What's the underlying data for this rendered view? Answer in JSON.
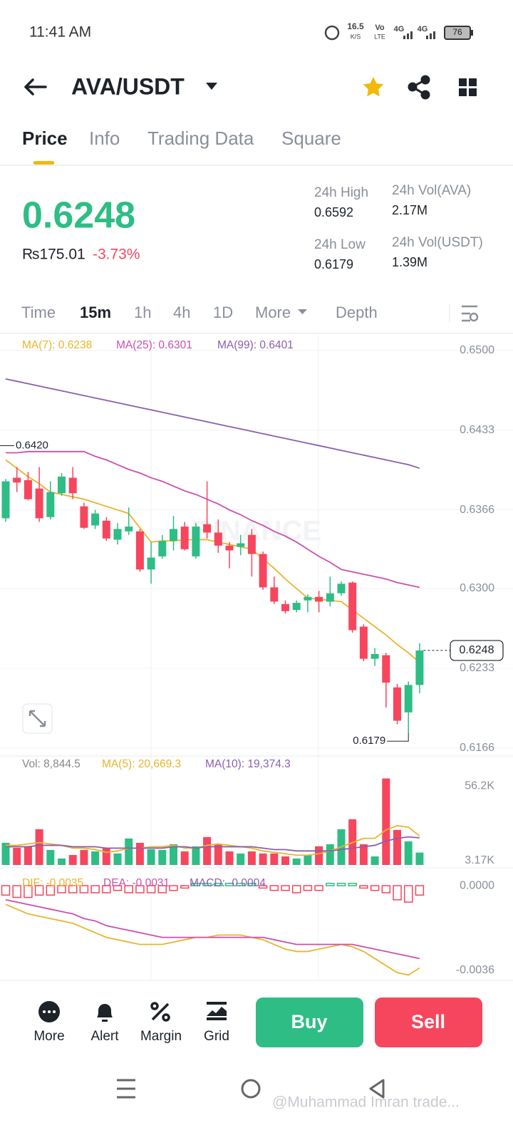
{
  "status_bar": {
    "time": "11:41 AM",
    "net_speed": "16.5",
    "net_unit": "K/S",
    "volte_top": "Vo",
    "volte_bottom": "LTE",
    "sim1": "4G",
    "sim2": "4G",
    "battery": "76"
  },
  "header": {
    "pair": "AVA/USDT"
  },
  "tabs": [
    "Price",
    "Info",
    "Trading Data",
    "Square"
  ],
  "ticker": {
    "price": "0.6248",
    "fiat": "₨175.01",
    "change": "-3.73%"
  },
  "stats": [
    {
      "label": "24h High",
      "value": "0.6592"
    },
    {
      "label": "24h Vol(AVA)",
      "value": "2.17M"
    },
    {
      "label": "24h Low",
      "value": "0.6179"
    },
    {
      "label": "24h Vol(USDT)",
      "value": "1.39M"
    }
  ],
  "intervals": [
    "Time",
    "15m",
    "1h",
    "4h",
    "1D",
    "More",
    "Depth"
  ],
  "watermark": "BINANCE",
  "chart_data": [
    {
      "type": "candlestick",
      "up_color": "#2ebd85",
      "down_color": "#f6465d",
      "open": [
        0.6359,
        0.6393,
        0.6391,
        0.6384,
        0.636,
        0.638,
        0.6393,
        0.6369,
        0.6353,
        0.6357,
        0.6341,
        0.6348,
        0.6348,
        0.6316,
        0.6327,
        0.634,
        0.6352,
        0.6327,
        0.6354,
        0.6347,
        0.6336,
        0.6335,
        0.6345,
        0.6329,
        0.6301,
        0.6287,
        0.6282,
        0.629,
        0.6293,
        0.6289,
        0.6296,
        0.6305,
        0.6268,
        0.6241,
        0.6244,
        0.6217,
        0.6196,
        0.6219
      ],
      "high": [
        0.6392,
        0.6402,
        0.6398,
        0.6402,
        0.639,
        0.6397,
        0.6402,
        0.6372,
        0.6366,
        0.636,
        0.6355,
        0.6368,
        0.635,
        0.6339,
        0.6345,
        0.6361,
        0.6356,
        0.6355,
        0.639,
        0.6358,
        0.6339,
        0.6345,
        0.635,
        0.6331,
        0.631,
        0.629,
        0.629,
        0.6295,
        0.6298,
        0.631,
        0.6306,
        0.6306,
        0.627,
        0.625,
        0.6246,
        0.622,
        0.6222,
        0.6254
      ],
      "low": [
        0.6356,
        0.6381,
        0.6374,
        0.6356,
        0.6358,
        0.6378,
        0.6375,
        0.635,
        0.635,
        0.634,
        0.6337,
        0.6345,
        0.6314,
        0.6304,
        0.6325,
        0.6332,
        0.6332,
        0.6325,
        0.6342,
        0.633,
        0.6317,
        0.6328,
        0.631,
        0.6299,
        0.6287,
        0.6279,
        0.628,
        0.628,
        0.628,
        0.6285,
        0.6294,
        0.6263,
        0.6239,
        0.6235,
        0.62,
        0.6186,
        0.6179,
        0.6212
      ],
      "close": [
        0.639,
        0.6389,
        0.6375,
        0.6359,
        0.6381,
        0.6394,
        0.638,
        0.6351,
        0.6363,
        0.6342,
        0.635,
        0.6352,
        0.6316,
        0.6326,
        0.634,
        0.635,
        0.6333,
        0.6352,
        0.6347,
        0.6336,
        0.6332,
        0.6338,
        0.6329,
        0.6301,
        0.6289,
        0.6281,
        0.6288,
        0.6293,
        0.6289,
        0.6296,
        0.6304,
        0.6265,
        0.6241,
        0.6245,
        0.6221,
        0.6189,
        0.6219,
        0.6248
      ],
      "series": [
        {
          "name": "MA(7): 0.6238",
          "color": "#e8b52a",
          "values": [
            0.6408,
            0.6401,
            0.6394,
            0.6388,
            0.6381,
            0.6379,
            0.6377,
            0.6375,
            0.6372,
            0.6369,
            0.6366,
            0.6363,
            0.6351,
            0.6339,
            0.634,
            0.634,
            0.6341,
            0.6341,
            0.6341,
            0.6339,
            0.6337,
            0.6335,
            0.6333,
            0.6325,
            0.6317,
            0.6308,
            0.63,
            0.6292,
            0.6291,
            0.629,
            0.6289,
            0.6282,
            0.6275,
            0.6268,
            0.6261,
            0.6253,
            0.6246,
            0.6238
          ]
        },
        {
          "name": "MA(25): 0.6301",
          "color": "#cc4fae",
          "values": [
            0.6414,
            0.6414,
            0.6415,
            0.6415,
            0.6415,
            0.6415,
            0.6415,
            0.6415,
            0.6411,
            0.6408,
            0.6404,
            0.64,
            0.6397,
            0.6393,
            0.639,
            0.6386,
            0.6382,
            0.6379,
            0.6375,
            0.6371,
            0.6366,
            0.6362,
            0.6357,
            0.6353,
            0.6348,
            0.6344,
            0.6339,
            0.6333,
            0.6327,
            0.6322,
            0.6316,
            0.6314,
            0.6312,
            0.631,
            0.6308,
            0.6305,
            0.6303,
            0.6301
          ]
        },
        {
          "name": "MA(99): 0.6401",
          "color": "#8a5fb0",
          "values": [
            0.6476,
            0.6474,
            0.6472,
            0.647,
            0.6468,
            0.6466,
            0.6464,
            0.6462,
            0.646,
            0.6458,
            0.6456,
            0.6454,
            0.6452,
            0.645,
            0.6448,
            0.6446,
            0.6444,
            0.6442,
            0.644,
            0.6438,
            0.6436,
            0.6434,
            0.6432,
            0.643,
            0.6428,
            0.6426,
            0.6424,
            0.6422,
            0.642,
            0.6418,
            0.6416,
            0.6414,
            0.6412,
            0.641,
            0.6408,
            0.6406,
            0.6404,
            0.6401
          ]
        }
      ],
      "ylim": [
        0.616,
        0.6513
      ],
      "yticks": [
        {
          "value": 0.65,
          "label": "0.6500"
        },
        {
          "value": 0.6433,
          "label": "0.6433"
        },
        {
          "value": 0.6366,
          "label": "0.6366"
        },
        {
          "value": 0.63,
          "label": "0.6300"
        },
        {
          "value": 0.6233,
          "label": "0.6233"
        },
        {
          "value": 0.6166,
          "label": "0.6166"
        }
      ],
      "grid": true,
      "annotations": [
        {
          "text": "0.6420",
          "value": 0.642
        },
        {
          "text": "0.6179",
          "value": 0.6179
        }
      ],
      "last_price": {
        "value": 0.6248,
        "label": "0.6248"
      }
    },
    {
      "type": "bar",
      "series": [
        {
          "name": "Vol: 8,844.5",
          "color": "#888888",
          "values": [
            15.8,
            12.2,
            13.3,
            25.5,
            10.7,
            4.6,
            7.1,
            10.7,
            9.7,
            12.2,
            8.2,
            18.9,
            15.8,
            11.2,
            10.7,
            14.8,
            9.7,
            13.3,
            19.9,
            14.8,
            9.7,
            8.2,
            9.7,
            8.2,
            8.2,
            6.1,
            4.6,
            7.1,
            13.3,
            14.8,
            25.5,
            32.6,
            14.8,
            6.1,
            61.7,
            25.0,
            16.8,
            8.8445
          ]
        },
        {
          "name": "MA(5): 20,669.3",
          "color": "#e8b52a",
          "values": [
            14,
            14,
            15,
            16,
            15,
            14,
            12,
            12,
            11,
            9,
            10,
            12,
            12,
            13,
            13,
            14,
            12,
            12,
            14,
            15,
            14,
            13,
            12,
            10,
            9,
            8,
            7,
            7,
            8,
            10,
            13,
            16,
            19,
            19,
            25,
            28,
            27,
            20.6693
          ]
        },
        {
          "name": "MA(10): 19,374.3",
          "color": "#8a5fb0",
          "values": [
            13,
            13,
            13,
            14,
            14,
            14,
            13,
            13,
            13,
            12,
            12,
            12,
            12,
            12,
            12,
            13,
            13,
            12,
            13,
            13,
            13,
            13,
            13,
            12,
            11,
            11,
            10,
            10,
            10,
            10,
            11,
            12,
            13,
            14,
            17,
            19,
            20,
            19.3743
          ]
        }
      ],
      "ylim": [
        0,
        63
      ],
      "yticks": [
        {
          "value": 56.2,
          "label": "56.2K"
        },
        {
          "value": 3.17,
          "label": "3.17K"
        }
      ]
    },
    {
      "type": "macd",
      "series": [
        {
          "name": "DIF: -0.0035",
          "color": "#e8b52a",
          "values": [
            -0.0008,
            -0.001,
            -0.0012,
            -0.0013,
            -0.0014,
            -0.0015,
            -0.0016,
            -0.0018,
            -0.002,
            -0.0022,
            -0.0023,
            -0.0024,
            -0.0025,
            -0.0025,
            -0.0025,
            -0.0024,
            -0.0023,
            -0.0022,
            -0.0022,
            -0.0021,
            -0.0021,
            -0.0021,
            -0.0022,
            -0.0023,
            -0.0025,
            -0.0027,
            -0.0028,
            -0.0028,
            -0.0027,
            -0.0026,
            -0.0025,
            -0.0026,
            -0.0028,
            -0.0031,
            -0.0034,
            -0.0037,
            -0.0038,
            -0.0035
          ]
        },
        {
          "name": "DEA: -0.0031",
          "color": "#cc4fae",
          "values": [
            -0.0006,
            -0.0007,
            -0.0008,
            -0.0009,
            -0.001,
            -0.0011,
            -0.0012,
            -0.0014,
            -0.0015,
            -0.0017,
            -0.0018,
            -0.0019,
            -0.002,
            -0.0021,
            -0.0022,
            -0.0022,
            -0.0022,
            -0.0022,
            -0.0022,
            -0.0022,
            -0.0022,
            -0.0022,
            -0.0022,
            -0.0022,
            -0.0023,
            -0.0024,
            -0.0025,
            -0.0025,
            -0.0025,
            -0.0025,
            -0.0025,
            -0.0025,
            -0.0026,
            -0.0027,
            -0.0028,
            -0.0029,
            -0.003,
            -0.0031
          ]
        },
        {
          "name": "MACD: -0.0004",
          "color": "#8a5fb0",
          "values": [
            -0.0004,
            -0.0005,
            -0.0005,
            -0.0004,
            -0.0004,
            -0.0003,
            -0.0003,
            -0.0003,
            -0.0003,
            -0.0003,
            -0.0002,
            -0.0003,
            -0.0003,
            -0.0003,
            -0.0003,
            -0.0002,
            -0.0001,
            0.0001,
            0.0001,
            0.0001,
            0.0001,
            0.0001,
            0.0001,
            -0.0001,
            -0.0002,
            -0.0002,
            -0.0003,
            -0.0002,
            -0.0002,
            0.0001,
            0.0001,
            0.0001,
            -0.0001,
            -0.0002,
            -0.0003,
            -0.0006,
            -0.0007,
            -0.0004
          ]
        }
      ],
      "ylim": [
        -0.004,
        0.0007
      ],
      "yticks": [
        {
          "value": 0,
          "label": "0.0000"
        },
        {
          "value": -0.0036,
          "label": "-0.0036"
        }
      ]
    }
  ],
  "actions": [
    "More",
    "Alert",
    "Margin",
    "Grid"
  ],
  "buttons": [
    "Buy",
    "Sell"
  ],
  "credit": "@Muhammad Imran trade..."
}
